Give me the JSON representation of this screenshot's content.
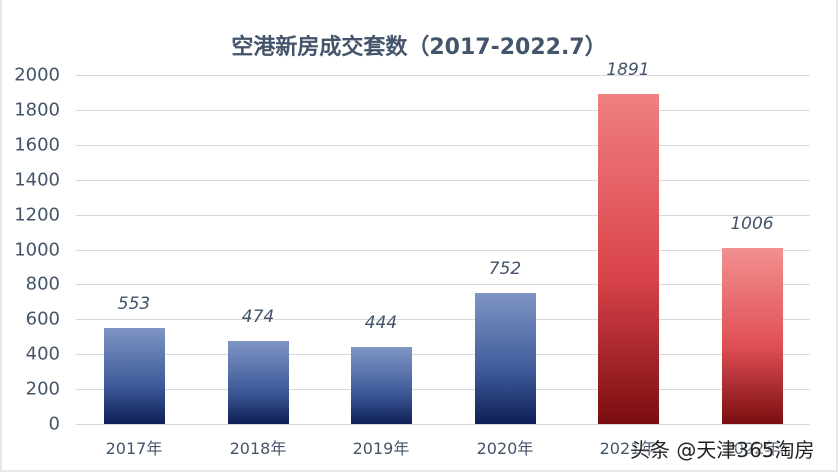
{
  "chart_data": {
    "type": "bar",
    "title": "空港新房成交套数（2017-2022.7）",
    "categories": [
      "2017年",
      "2018年",
      "2019年",
      "2020年",
      "2021年",
      "2022年"
    ],
    "values": [
      553,
      474,
      444,
      752,
      1891,
      1006
    ],
    "data_labels": [
      "553",
      "474",
      "444",
      "752",
      "1891",
      "1006"
    ],
    "bar_colors": [
      "#3e5a99",
      "#3e5a99",
      "#3e5a99",
      "#3e5a99",
      "#d9444b",
      "#e05055"
    ],
    "xlabel": "",
    "ylabel": "",
    "ylim": [
      0,
      2000
    ],
    "yticks": [
      "0",
      "200",
      "400",
      "600",
      "800",
      "1000",
      "1200",
      "1400",
      "1600",
      "1800",
      "2000"
    ],
    "grid": true,
    "legend": null
  },
  "watermark": "头条 @天津365淘房"
}
